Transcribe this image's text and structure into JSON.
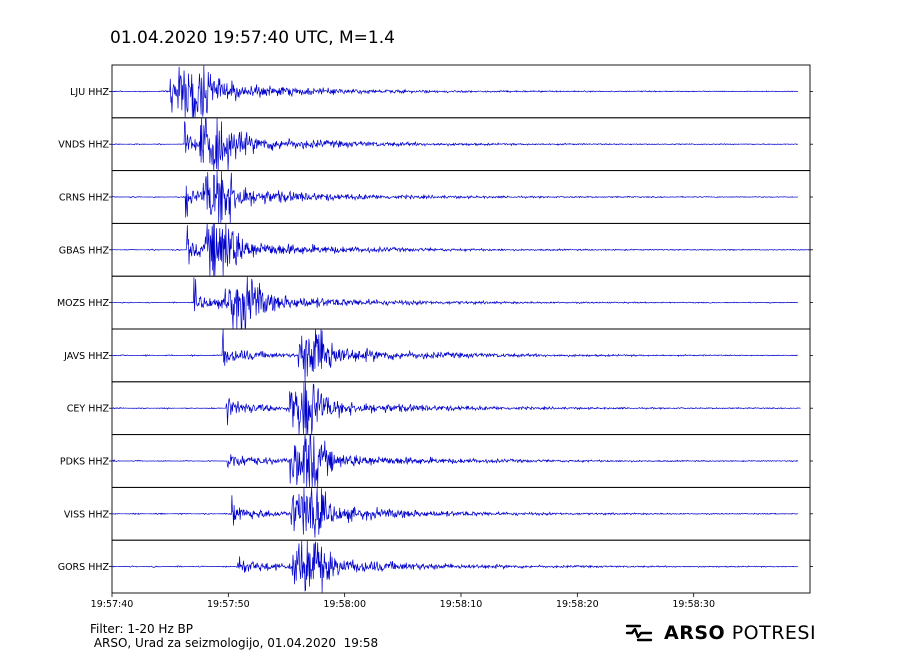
{
  "chart_data": {
    "type": "line",
    "title": "01.04.2020  19:57:40 UTC, M=1.4",
    "x_tick_labels": [
      "19:57:40",
      "19:57:50",
      "19:58:00",
      "19:58:10",
      "19:58:20",
      "19:58:30"
    ],
    "x_ticks_s": [
      0,
      10,
      20,
      30,
      40,
      50
    ],
    "xlim_s": [
      0,
      60
    ],
    "line_color": "#0000cc",
    "series": [
      {
        "name": "LJU HHZ",
        "p_arrival_s": 5.0,
        "s_arrival_s": 6.8,
        "end_s": 59.0,
        "amp": 1.0
      },
      {
        "name": "VNDS HHZ",
        "p_arrival_s": 6.2,
        "s_arrival_s": 8.7,
        "end_s": 59.0,
        "amp": 1.0
      },
      {
        "name": "CRNS HHZ",
        "p_arrival_s": 6.3,
        "s_arrival_s": 9.0,
        "end_s": 59.0,
        "amp": 1.0
      },
      {
        "name": "GBAS HHZ",
        "p_arrival_s": 6.4,
        "s_arrival_s": 9.1,
        "end_s": 60.0,
        "amp": 1.0
      },
      {
        "name": "MOZS HHZ",
        "p_arrival_s": 7.0,
        "s_arrival_s": 10.9,
        "end_s": 59.0,
        "amp": 1.0
      },
      {
        "name": "JAVS HHZ",
        "p_arrival_s": 9.5,
        "s_arrival_s": 17.2,
        "end_s": 59.0,
        "amp": 1.0
      },
      {
        "name": "CEY HHZ",
        "p_arrival_s": 9.8,
        "s_arrival_s": 16.4,
        "end_s": 59.2,
        "amp": 1.0
      },
      {
        "name": "PDKS HHZ",
        "p_arrival_s": 9.9,
        "s_arrival_s": 16.5,
        "end_s": 59.0,
        "amp": 1.0
      },
      {
        "name": "VISS HHZ",
        "p_arrival_s": 10.3,
        "s_arrival_s": 16.6,
        "end_s": 59.0,
        "amp": 1.0
      },
      {
        "name": "GORS HHZ",
        "p_arrival_s": 10.7,
        "s_arrival_s": 16.7,
        "end_s": 59.0,
        "amp": 1.0
      }
    ]
  },
  "footer": {
    "filter": "Filter: 1-20 Hz BP",
    "source": " ARSO, Urad za seizmologijo, 01.04.2020  19:58"
  },
  "brand": {
    "strong": "ARSO",
    "light": " POTRESI"
  }
}
